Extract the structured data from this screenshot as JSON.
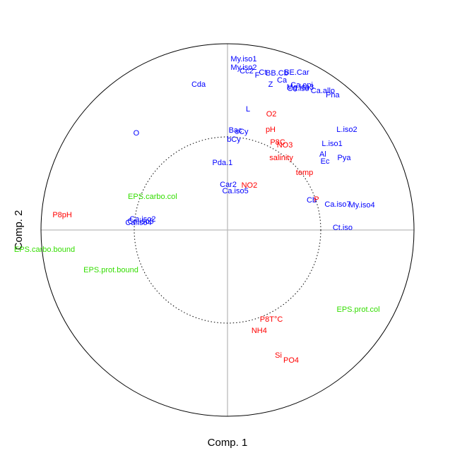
{
  "chart_data": {
    "type": "scatter",
    "marker": "text",
    "x_label": "Comp. 1",
    "y_label": "Comp. 2",
    "xlim": [
      -1,
      1
    ],
    "ylim": [
      -1,
      1
    ],
    "circle_radii": [
      1,
      0.5
    ],
    "hline": 0,
    "vline": 0,
    "series": [
      {
        "color": "#0000ff",
        "labels": [
          "My.iso1",
          "My.iso2",
          "Cc2",
          "Ct",
          "F",
          "BB.Cb",
          "BE.Car",
          "Ca",
          "Z",
          "Ca.epi",
          "Mg.iso3",
          "Cd.iso",
          "Ca.allo",
          "Pha",
          "Cda",
          "L",
          "O",
          "Bac",
          "sCy",
          "bCy",
          "L.iso2",
          "L.iso1",
          "Al",
          "Ec",
          "Pya",
          "Pda.1",
          "Car2",
          "Ca.iso5",
          "Cb",
          "Ca.iso7",
          "My.iso4",
          "Ct.iso",
          "Ca.iso2",
          "Ca.iso3",
          "Ca.iso4"
        ],
        "x": [
          0.087,
          0.087,
          0.102,
          0.189,
          0.159,
          0.265,
          0.371,
          0.292,
          0.231,
          0.398,
          0.39,
          0.379,
          0.511,
          0.564,
          -0.155,
          0.11,
          -0.489,
          0.042,
          0.076,
          0.034,
          0.64,
          0.561,
          0.511,
          0.523,
          0.625,
          -0.027,
          0.004,
          0.042,
          0.451,
          0.591,
          0.72,
          0.617,
          -0.455,
          -0.466,
          -0.477
        ],
        "y": [
          0.917,
          0.871,
          0.852,
          0.845,
          0.83,
          0.841,
          0.845,
          0.803,
          0.78,
          0.776,
          0.765,
          0.758,
          0.746,
          0.723,
          0.78,
          0.648,
          0.519,
          0.534,
          0.527,
          0.485,
          0.538,
          0.462,
          0.405,
          0.367,
          0.386,
          0.36,
          0.242,
          0.208,
          0.159,
          0.136,
          0.133,
          0.011,
          0.057,
          0.045,
          0.038
        ]
      },
      {
        "color": "#ff0000",
        "labels": [
          "O2",
          "pH",
          "P8C",
          "NO3",
          "salinity",
          "temp",
          "NO2",
          "P",
          "P8pH",
          "P8T°C",
          "NH4",
          "Si",
          "PO4"
        ],
        "x": [
          0.235,
          0.231,
          0.269,
          0.307,
          0.288,
          0.413,
          0.117,
          0.477,
          -0.886,
          0.235,
          0.17,
          0.273,
          0.341
        ],
        "y": [
          0.621,
          0.538,
          0.47,
          0.455,
          0.386,
          0.307,
          0.239,
          0.163,
          0.08,
          -0.481,
          -0.542,
          -0.674,
          -0.701
        ]
      },
      {
        "color": "#33dd00",
        "labels": [
          "EPS.carbo.col",
          "EPS.carbo.bound",
          "EPS.prot.bound",
          "EPS.prot.col"
        ],
        "x": [
          -0.402,
          -0.981,
          -0.625,
          0.701
        ],
        "y": [
          0.178,
          -0.106,
          -0.216,
          -0.428
        ]
      }
    ]
  }
}
